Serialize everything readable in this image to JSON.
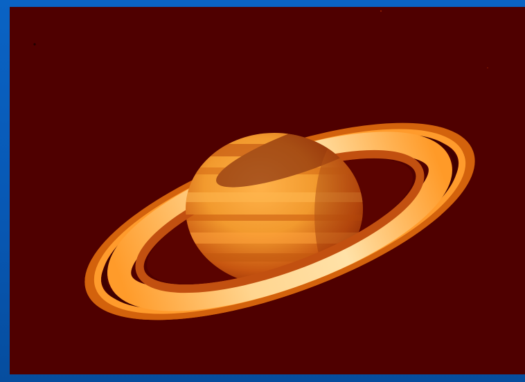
{
  "slide": {
    "background_color": "#0a5fbf",
    "photo": {
      "subject_icon": "saturn-planet-icon",
      "space_color": "#4f0000"
    }
  }
}
